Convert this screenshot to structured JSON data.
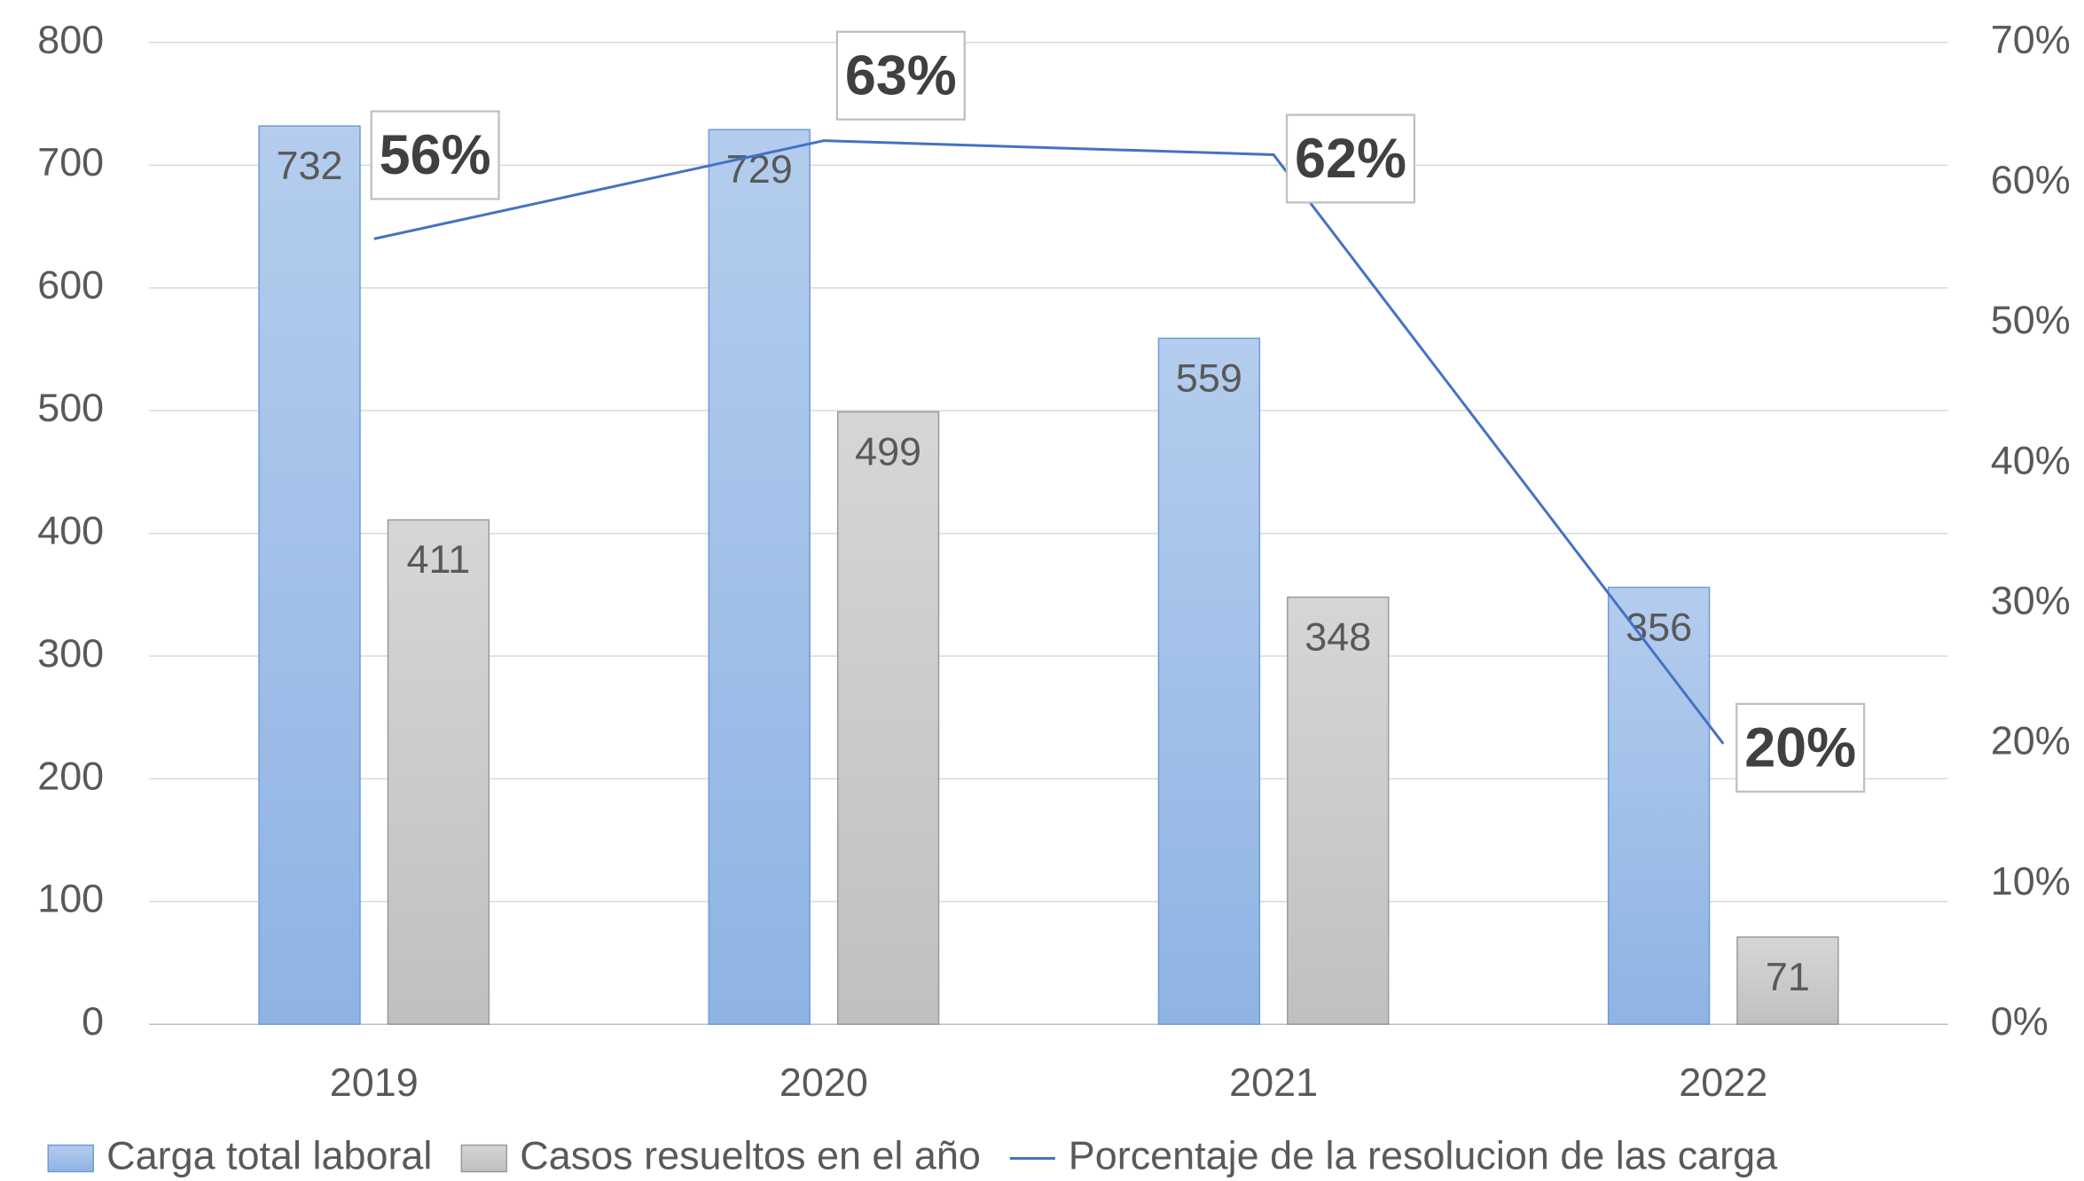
{
  "chart_data": {
    "type": "bar",
    "categories": [
      "2019",
      "2020",
      "2021",
      "2022"
    ],
    "series": [
      {
        "name": "Carga total laboral",
        "color": "#9dbde8",
        "values": [
          732,
          729,
          559,
          356
        ]
      },
      {
        "name": "Casos resueltos en el año",
        "color": "#c8c8c8",
        "values": [
          411,
          499,
          348,
          71
        ]
      },
      {
        "name": "Porcentaje de la resolucion de las carga",
        "color": "#4472c4",
        "type": "line",
        "axis": "y2",
        "values": [
          56,
          63,
          62,
          20
        ],
        "value_labels": [
          "56%",
          "63%",
          "62%",
          "20%"
        ]
      }
    ],
    "ylim": [
      0,
      800
    ],
    "yticks": [
      0,
      100,
      200,
      300,
      400,
      500,
      600,
      700,
      800
    ],
    "y2lim": [
      0,
      70
    ],
    "y2ticks": [
      {
        "value": 0,
        "label": "0%"
      },
      {
        "value": 10,
        "label": "10%"
      },
      {
        "value": 20,
        "label": "20%"
      },
      {
        "value": 30,
        "label": "30%"
      },
      {
        "value": 40,
        "label": "40%"
      },
      {
        "value": 50,
        "label": "50%"
      },
      {
        "value": 60,
        "label": "60%"
      },
      {
        "value": 70,
        "label": "70%"
      }
    ],
    "grid": true,
    "legend": "bottom"
  }
}
